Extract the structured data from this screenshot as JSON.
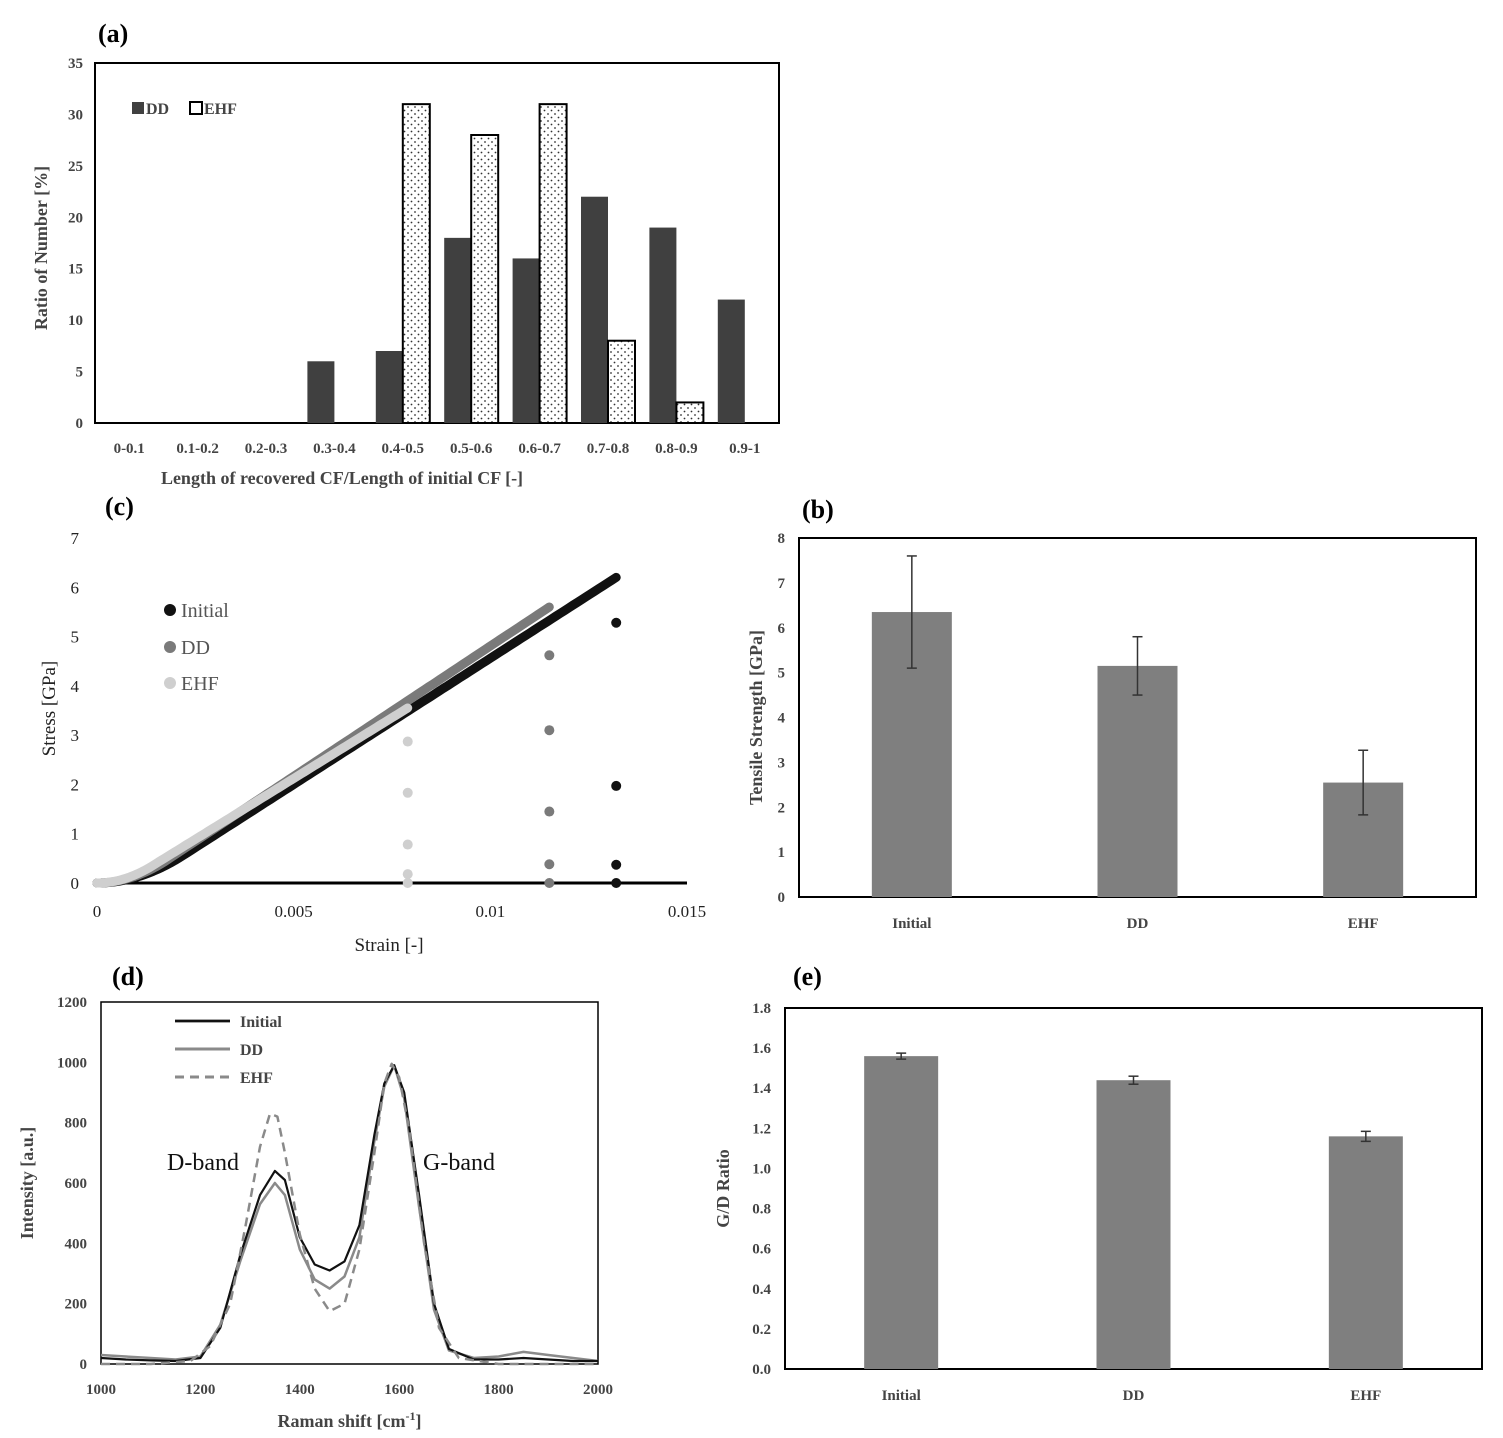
{
  "figure": {
    "panel_a": "(a)",
    "panel_b": "(b)",
    "panel_c": "(c)",
    "panel_d": "(d)",
    "panel_e": "(e)"
  },
  "colors": {
    "dd_dark": "#404040",
    "bar_gray": "#7f7f7f",
    "initial_black": "#111111",
    "dd_gray": "#7a7a7a",
    "ehf_light": "#cfcfcf",
    "raman_dd": "#8a8a8a",
    "raman_ehf": "#8a8a8a"
  },
  "chart_data": [
    {
      "id": "a",
      "type": "bar",
      "title": "",
      "xlabel": "Length of recovered CF/Length of initial CF [-]",
      "ylabel": "Ratio of Number [%]",
      "ylim": [
        0,
        35
      ],
      "yticks": [
        "0",
        "5",
        "10",
        "15",
        "20",
        "25",
        "30",
        "35"
      ],
      "categories": [
        "0-0.1",
        "0.1-0.2",
        "0.2-0.3",
        "0.3-0.4",
        "0.4-0.5",
        "0.5-0.6",
        "0.6-0.7",
        "0.7-0.8",
        "0.8-0.9",
        "0.9-1"
      ],
      "series": [
        {
          "name": "DD",
          "values": [
            0,
            0,
            0,
            6,
            7,
            18,
            16,
            22,
            19,
            12
          ]
        },
        {
          "name": "EHF",
          "values": [
            0,
            0,
            0,
            0,
            31,
            28,
            31,
            8,
            2,
            0
          ]
        }
      ],
      "legend": [
        "DD",
        "EHF"
      ]
    },
    {
      "id": "b",
      "type": "bar",
      "xlabel": "",
      "ylabel": "Tensile Strength [GPa]",
      "ylim": [
        0,
        8
      ],
      "yticks": [
        "0",
        "1",
        "2",
        "3",
        "4",
        "5",
        "6",
        "7",
        "8"
      ],
      "categories": [
        "Initial",
        "DD",
        "EHF"
      ],
      "values": [
        6.35,
        5.15,
        2.55
      ],
      "errors": [
        1.25,
        0.65,
        0.72
      ]
    },
    {
      "id": "c",
      "type": "scatter",
      "xlabel": "Strain [-]",
      "ylabel": "Stress [GPa]",
      "xlim": [
        0,
        0.015
      ],
      "ylim": [
        0,
        7
      ],
      "xticks": [
        "0",
        "0.005",
        "0.01",
        "0.015"
      ],
      "yticks": [
        "0",
        "1",
        "2",
        "3",
        "4",
        "5",
        "6",
        "7"
      ],
      "legend": [
        "Initial",
        "DD",
        "EHF"
      ],
      "series": [
        {
          "name": "Initial",
          "strain_max": 0.0132,
          "stress_max": 6.2,
          "toe": 0.0011,
          "drop_points": [
            5.28,
            1.97,
            0.37,
            0.0
          ]
        },
        {
          "name": "DD",
          "strain_max": 0.0115,
          "stress_max": 5.6,
          "toe": 0.0009,
          "drop_points": [
            4.62,
            3.1,
            1.45,
            0.38,
            0.0
          ]
        },
        {
          "name": "EHF",
          "strain_max": 0.0079,
          "stress_max": 3.55,
          "toe": 0.0007,
          "drop_points": [
            2.87,
            1.83,
            0.78,
            0.18,
            0.0
          ]
        }
      ]
    },
    {
      "id": "d",
      "type": "line",
      "xlabel": "Raman shift [cm",
      "xlabel_sup": "-1",
      "xlabel_end": "]",
      "ylabel": "Intensity [a.u.]",
      "xlim": [
        1000,
        2000
      ],
      "ylim": [
        0,
        1200
      ],
      "xticks": [
        "1000",
        "1200",
        "1400",
        "1600",
        "1800",
        "2000"
      ],
      "yticks": [
        "0",
        "200",
        "400",
        "600",
        "800",
        "1000",
        "1200"
      ],
      "legend": [
        "Initial",
        "DD",
        "EHF"
      ],
      "annotations": [
        "D-band",
        "G-band"
      ],
      "series": [
        {
          "name": "Initial",
          "style": "solid",
          "x": [
            1000,
            1050,
            1100,
            1150,
            1200,
            1240,
            1280,
            1320,
            1350,
            1370,
            1400,
            1430,
            1460,
            1490,
            1520,
            1550,
            1570,
            1590,
            1610,
            1640,
            1670,
            1700,
            1750,
            1800,
            1850,
            1900,
            1950,
            2000
          ],
          "y": [
            20,
            15,
            12,
            10,
            20,
            120,
            360,
            560,
            640,
            610,
            420,
            330,
            310,
            340,
            460,
            760,
            930,
            990,
            900,
            560,
            200,
            50,
            15,
            15,
            20,
            15,
            10,
            10
          ]
        },
        {
          "name": "DD",
          "style": "solid",
          "x": [
            1000,
            1050,
            1100,
            1150,
            1200,
            1240,
            1280,
            1320,
            1350,
            1370,
            1400,
            1430,
            1460,
            1490,
            1520,
            1550,
            1570,
            1590,
            1610,
            1640,
            1670,
            1700,
            1750,
            1800,
            1850,
            1900,
            1950,
            2000
          ],
          "y": [
            30,
            25,
            20,
            15,
            25,
            130,
            340,
            530,
            600,
            560,
            380,
            280,
            250,
            290,
            420,
            740,
            920,
            990,
            880,
            520,
            180,
            45,
            20,
            25,
            40,
            30,
            20,
            10
          ]
        },
        {
          "name": "EHF",
          "style": "dashed",
          "x": [
            1000,
            1100,
            1180,
            1220,
            1260,
            1290,
            1320,
            1340,
            1355,
            1370,
            1400,
            1430,
            1460,
            1490,
            1520,
            1550,
            1570,
            1585,
            1600,
            1620,
            1650,
            1680,
            1720,
            1800,
            2000
          ],
          "y": [
            0,
            0,
            10,
            60,
            200,
            450,
            720,
            830,
            820,
            700,
            430,
            250,
            175,
            200,
            380,
            700,
            930,
            995,
            950,
            780,
            400,
            120,
            20,
            0,
            0
          ]
        }
      ]
    },
    {
      "id": "e",
      "type": "bar",
      "xlabel": "",
      "ylabel": "G/D Ratio",
      "ylim": [
        0,
        1.8
      ],
      "yticks": [
        "0.0",
        "0.2",
        "0.4",
        "0.6",
        "0.8",
        "1.0",
        "1.2",
        "1.4",
        "1.6",
        "1.8"
      ],
      "categories": [
        "Initial",
        "DD",
        "EHF"
      ],
      "values": [
        1.56,
        1.44,
        1.16
      ],
      "errors": [
        0.015,
        0.02,
        0.025
      ]
    }
  ]
}
